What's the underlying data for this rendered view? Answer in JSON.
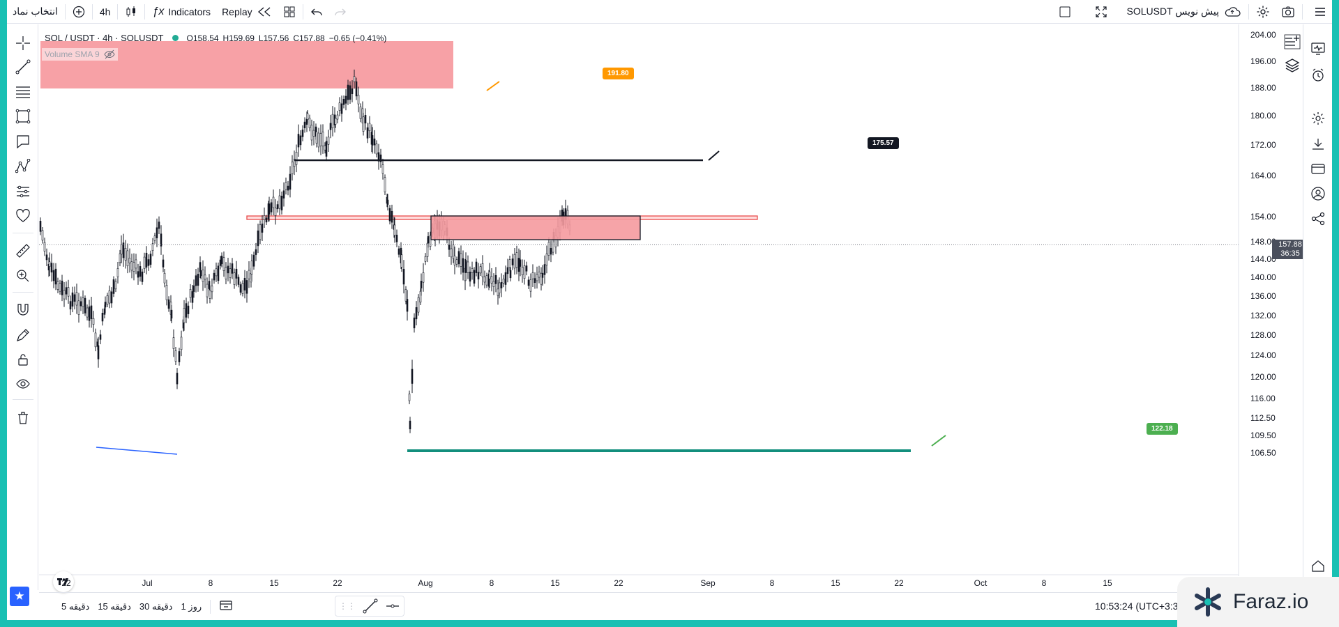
{
  "topbar": {
    "symbol_search": "انتخاب نماد",
    "interval": "4h",
    "indicators": "Indicators",
    "replay": "Replay",
    "layout_name": "SOLUSDT پیش نویس"
  },
  "legend": {
    "symbol": "SOL / USDT · 4h · SOLUSDT",
    "open": "O158.54",
    "high": "H159.69",
    "low": "L157.56",
    "close": "C157.88",
    "change": "−0.65 (−0.41%)",
    "volume": "Volume SMA 9"
  },
  "price_axis": {
    "labels": [
      "204.00",
      "196.00",
      "188.00",
      "180.00",
      "172.00",
      "164.00",
      "154.00",
      "148.00",
      "144.00",
      "140.00",
      "136.00",
      "132.00",
      "128.00",
      "124.00",
      "120.00",
      "116.00",
      "112.50",
      "109.50",
      "106.50"
    ],
    "current_price": "157.88",
    "countdown": "36:35"
  },
  "time_axis": {
    "labels": [
      "22",
      "Jul",
      "8",
      "15",
      "22",
      "Aug",
      "8",
      "15",
      "22",
      "Sep",
      "8",
      "15",
      "22",
      "Oct",
      "8",
      "15"
    ]
  },
  "annotations": {
    "callout_top": "191.80",
    "callout_mid": "175.57",
    "callout_low": "122.18"
  },
  "bottombar": {
    "tf_5m": "5 دقیقه",
    "tf_15m": "15 دقیقه",
    "tf_30m": "30 دقیقه",
    "tf_1d": "1 روز",
    "clock": "10:53:24 (UTC+3:3"
  },
  "brand": {
    "name": "Faraz.io"
  },
  "colors": {
    "accent": "#2962ff",
    "frame": "#19c0b3",
    "zone_red": "#f7a1a6",
    "support_green": "#138f7d",
    "callout_orange": "#ff9800",
    "callout_green": "#4caf50"
  }
}
